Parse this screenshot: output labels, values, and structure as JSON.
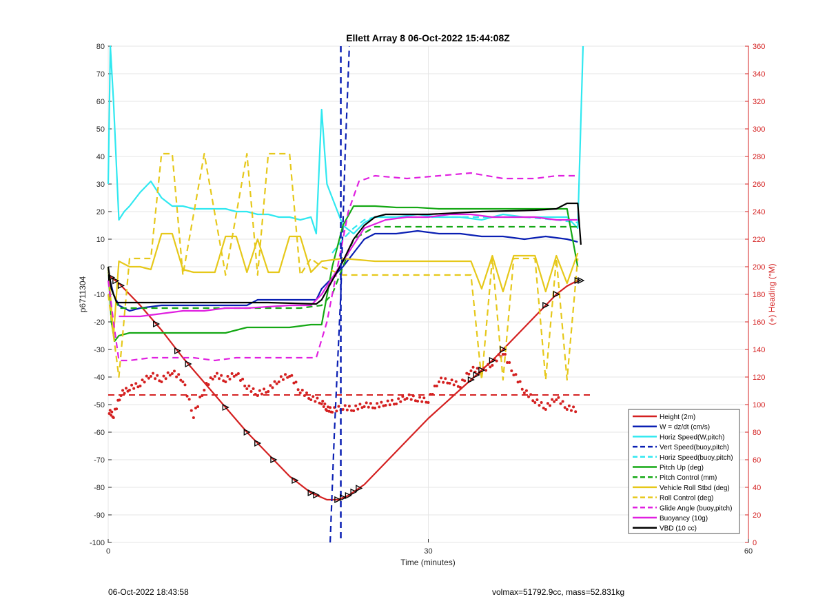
{
  "chart_data": {
    "type": "line",
    "title": "Ellett Array 8 06-Oct-2022 15:44:08Z",
    "xlabel": "Time (minutes)",
    "ylabel": "p6711304",
    "y2label": "(+) Heading (°M)",
    "xlim": [
      0,
      60
    ],
    "ylim": [
      -100,
      80
    ],
    "y2lim": [
      0,
      360
    ],
    "xticks": [
      0,
      30,
      60
    ],
    "yticks": [
      -100,
      -90,
      -80,
      -70,
      -60,
      -50,
      -40,
      -30,
      -20,
      -10,
      0,
      10,
      20,
      30,
      40,
      50,
      60,
      70,
      80
    ],
    "y2ticks": [
      0,
      20,
      40,
      60,
      80,
      100,
      120,
      140,
      160,
      180,
      200,
      220,
      240,
      260,
      280,
      300,
      320,
      340,
      360
    ],
    "grid": true,
    "legend_position": "bottom-right",
    "colors": {
      "height": "#d42020",
      "w": "#0a1fb3",
      "horiz": "#30e8f0",
      "pitch": "#15a815",
      "roll": "#e6c81a",
      "glide": "#e020e0",
      "buoy": "#e020e0",
      "vbd": "#000000",
      "heading": "#d42020"
    },
    "series": [
      {
        "name": "Height (2m)",
        "style": "solid",
        "color": "height",
        "x": [
          0,
          1,
          3,
          5,
          7,
          9,
          11,
          13,
          15,
          17,
          19,
          20.5,
          21.5,
          22.5,
          24,
          26,
          28,
          30,
          32,
          34,
          36,
          38,
          40,
          42,
          43,
          44
        ],
        "y": [
          -3,
          -6,
          -14,
          -23,
          -33,
          -42,
          -51,
          -60,
          -68,
          -76,
          -82,
          -84.5,
          -84.5,
          -83,
          -79,
          -71,
          -63,
          -55,
          -48,
          -41,
          -34,
          -26,
          -18,
          -10,
          -7,
          -5
        ]
      },
      {
        "name": "W = dz/dt (cm/s)",
        "style": "solid",
        "color": "w",
        "x": [
          0,
          0.5,
          1,
          2,
          3,
          5,
          7,
          9,
          11,
          13,
          14,
          16,
          18,
          19.5,
          20,
          21,
          22,
          23,
          24,
          25,
          27,
          29,
          31,
          33,
          35,
          37,
          39,
          41,
          43,
          44
        ],
        "y": [
          -2,
          -10,
          -14,
          -16,
          -15,
          -14,
          -14,
          -14,
          -14,
          -14,
          -12,
          -12,
          -12,
          -12,
          -8,
          -4,
          0,
          5,
          10,
          12,
          12,
          13,
          12,
          12,
          11,
          11,
          10,
          11,
          10,
          9
        ]
      },
      {
        "name": "Horiz Speed(W,pitch)",
        "style": "solid",
        "color": "horiz",
        "x": [
          0,
          0.2,
          0.5,
          1,
          1.5,
          2,
          3,
          4,
          5,
          6,
          7,
          8,
          9,
          10,
          11,
          12,
          13,
          14,
          15,
          16,
          17,
          18,
          19,
          19.5,
          20,
          20.5,
          21,
          22,
          23,
          24,
          25,
          27,
          29,
          31,
          33,
          35,
          37,
          39,
          41,
          43,
          44,
          44.5
        ],
        "y": [
          30,
          80,
          60,
          17,
          20,
          22,
          27,
          31,
          25,
          22,
          22,
          21,
          21,
          21,
          21,
          20,
          20,
          19,
          19,
          18,
          18,
          17,
          18,
          12,
          57,
          30,
          25,
          15,
          12,
          16,
          18,
          18,
          19,
          18,
          18,
          17,
          19,
          18,
          18,
          18,
          14,
          80
        ]
      },
      {
        "name": "Vert Speed(buoy,pitch)",
        "style": "dashed",
        "color": "w",
        "x": [
          20.8,
          21.2,
          21.8,
          22.2,
          22.6
        ],
        "y": [
          -100,
          -60,
          -10,
          40,
          80
        ]
      },
      {
        "name": "Horiz Speed(buoy,pitch)",
        "style": "dashed",
        "color": "horiz",
        "x": [
          21,
          22,
          23,
          24,
          25,
          27,
          30,
          33,
          36,
          39,
          42,
          44
        ],
        "y": [
          5,
          10,
          14,
          17,
          18,
          18,
          18,
          18,
          18,
          18,
          17,
          16
        ]
      },
      {
        "name": "Pitch Up (deg)",
        "style": "solid",
        "color": "pitch",
        "x": [
          0,
          0.3,
          0.6,
          1,
          2,
          3,
          5,
          7,
          9,
          11,
          13,
          15,
          17,
          19,
          20,
          21,
          22,
          23,
          25,
          27,
          29,
          31,
          33,
          35,
          37,
          39,
          41,
          43,
          44
        ],
        "y": [
          0,
          -20,
          -27,
          -25,
          -24,
          -24,
          -24,
          -24,
          -24,
          -24,
          -22,
          -22,
          -22,
          -21,
          -21,
          0,
          15,
          22,
          22,
          21.5,
          21.5,
          21,
          21,
          21,
          21,
          21,
          21,
          21,
          0
        ]
      },
      {
        "name": "Pitch Control (mm)",
        "style": "dashed",
        "color": "pitch",
        "x": [
          0,
          1,
          3,
          6,
          9,
          12,
          15,
          18,
          20,
          21,
          22,
          23,
          25,
          30,
          35,
          40,
          44
        ],
        "y": [
          -5,
          -15,
          -15,
          -15,
          -15,
          -15,
          -15,
          -15,
          -14,
          -10,
          0,
          10,
          14.5,
          14.5,
          14.5,
          14.5,
          14.5
        ]
      },
      {
        "name": "Vehicle Roll Stbd (deg)",
        "style": "solid",
        "color": "roll",
        "x": [
          0,
          0.5,
          1,
          2,
          3,
          4,
          5,
          6,
          7,
          8,
          9,
          10,
          11,
          12,
          13,
          14,
          15,
          16,
          17,
          18,
          19,
          20,
          22,
          25,
          30,
          34,
          35,
          36,
          37,
          38,
          40,
          41,
          42,
          43,
          44
        ],
        "y": [
          0,
          -25,
          2,
          0,
          0,
          -1,
          12,
          12,
          -1,
          -2,
          -2,
          -2,
          11,
          11,
          -2,
          10,
          -2,
          -2,
          11,
          11,
          -2,
          2,
          3,
          2,
          2,
          2,
          -8,
          4,
          -9,
          4,
          4,
          -9,
          4,
          -6,
          5
        ]
      },
      {
        "name": "Roll Control (deg)",
        "style": "dashed",
        "color": "roll",
        "x": [
          0,
          1,
          2,
          3,
          4,
          5,
          6,
          7,
          9,
          11,
          13,
          14,
          15,
          17,
          18,
          19,
          20,
          22,
          25,
          30,
          34,
          35,
          36,
          37,
          38,
          40,
          41,
          42,
          43,
          44
        ],
        "y": [
          -10,
          -40,
          3,
          3,
          3,
          41,
          41,
          -3,
          41,
          -3,
          41,
          -3,
          41,
          41,
          -3,
          3,
          0,
          -3,
          -3,
          -3,
          -3,
          -41,
          3,
          -41,
          3,
          3,
          -41,
          3,
          -41,
          3
        ]
      },
      {
        "name": "Glide Angle (buoy,pitch)",
        "style": "dashed",
        "color": "glide",
        "x": [
          0,
          0.5,
          1,
          2,
          4,
          6,
          8,
          10,
          12,
          14,
          16,
          18,
          19.5,
          20.5,
          21.5,
          22.5,
          23.5,
          25,
          28,
          31,
          34,
          37,
          40,
          42,
          44
        ],
        "y": [
          -5,
          -20,
          -34,
          -34,
          -33,
          -33,
          -33,
          -34,
          -33,
          -33,
          -33,
          -33,
          -33,
          -20,
          0,
          20,
          31,
          33,
          32,
          33,
          34,
          32,
          32,
          33,
          33
        ]
      },
      {
        "name": "Buoyancy (10g)",
        "style": "solid",
        "color": "buoy",
        "x": [
          1,
          3,
          5,
          7,
          9,
          11,
          13,
          15,
          17,
          19,
          20,
          21,
          22,
          24,
          26,
          28,
          30,
          32,
          34,
          36,
          38,
          40,
          42,
          44
        ],
        "y": [
          -18,
          -18,
          -17,
          -16,
          -16,
          -15,
          -15,
          -14.5,
          -14,
          -14,
          -10,
          -4,
          2,
          14,
          17,
          18,
          18,
          19,
          19,
          18,
          18,
          18,
          17,
          17
        ]
      },
      {
        "name": "VBD (10 cc)",
        "style": "solid",
        "color": "vbd",
        "x": [
          0,
          0.3,
          0.8,
          1,
          5,
          10,
          15,
          19.5,
          20,
          21,
          22,
          23,
          24,
          25,
          26,
          27,
          30,
          35,
          40,
          42,
          43,
          44,
          44.3
        ],
        "y": [
          0,
          -8,
          -13,
          -13,
          -13,
          -13,
          -13,
          -13.5,
          -12,
          -5,
          2,
          10,
          15,
          18,
          19,
          19,
          19,
          20,
          20.5,
          21,
          23,
          23,
          8
        ]
      }
    ],
    "heading_series": {
      "name": "Heading",
      "axis": "y2",
      "x": [
        0.1,
        0.5,
        1.2,
        2,
        3,
        4,
        5,
        6,
        7,
        8,
        9,
        10,
        11,
        12,
        13,
        14,
        15,
        16,
        17,
        18,
        19,
        20,
        20.5,
        21,
        22,
        23,
        24,
        25,
        26,
        27,
        28,
        29,
        30,
        31,
        32,
        33,
        34,
        35,
        36,
        37,
        38,
        39,
        40,
        41,
        42,
        43,
        44
      ],
      "y": [
        95,
        92,
        108,
        112,
        115,
        122,
        118,
        124,
        118,
        92,
        112,
        122,
        118,
        123,
        113,
        108,
        111,
        118,
        122,
        110,
        105,
        102,
        97,
        96,
        98,
        97,
        100,
        99,
        101,
        102,
        106,
        104,
        103,
        118,
        117,
        114,
        126,
        124,
        130,
        138,
        123,
        110,
        103,
        98,
        105,
        98,
        96
      ]
    },
    "heading_reference": {
      "axis": "y2",
      "value": 107
    },
    "vertical_line": {
      "x": 21.8
    }
  },
  "footer": {
    "left": "06-Oct-2022 18:43:58",
    "right": "volmax=51792.9cc, mass=52.831kg"
  }
}
